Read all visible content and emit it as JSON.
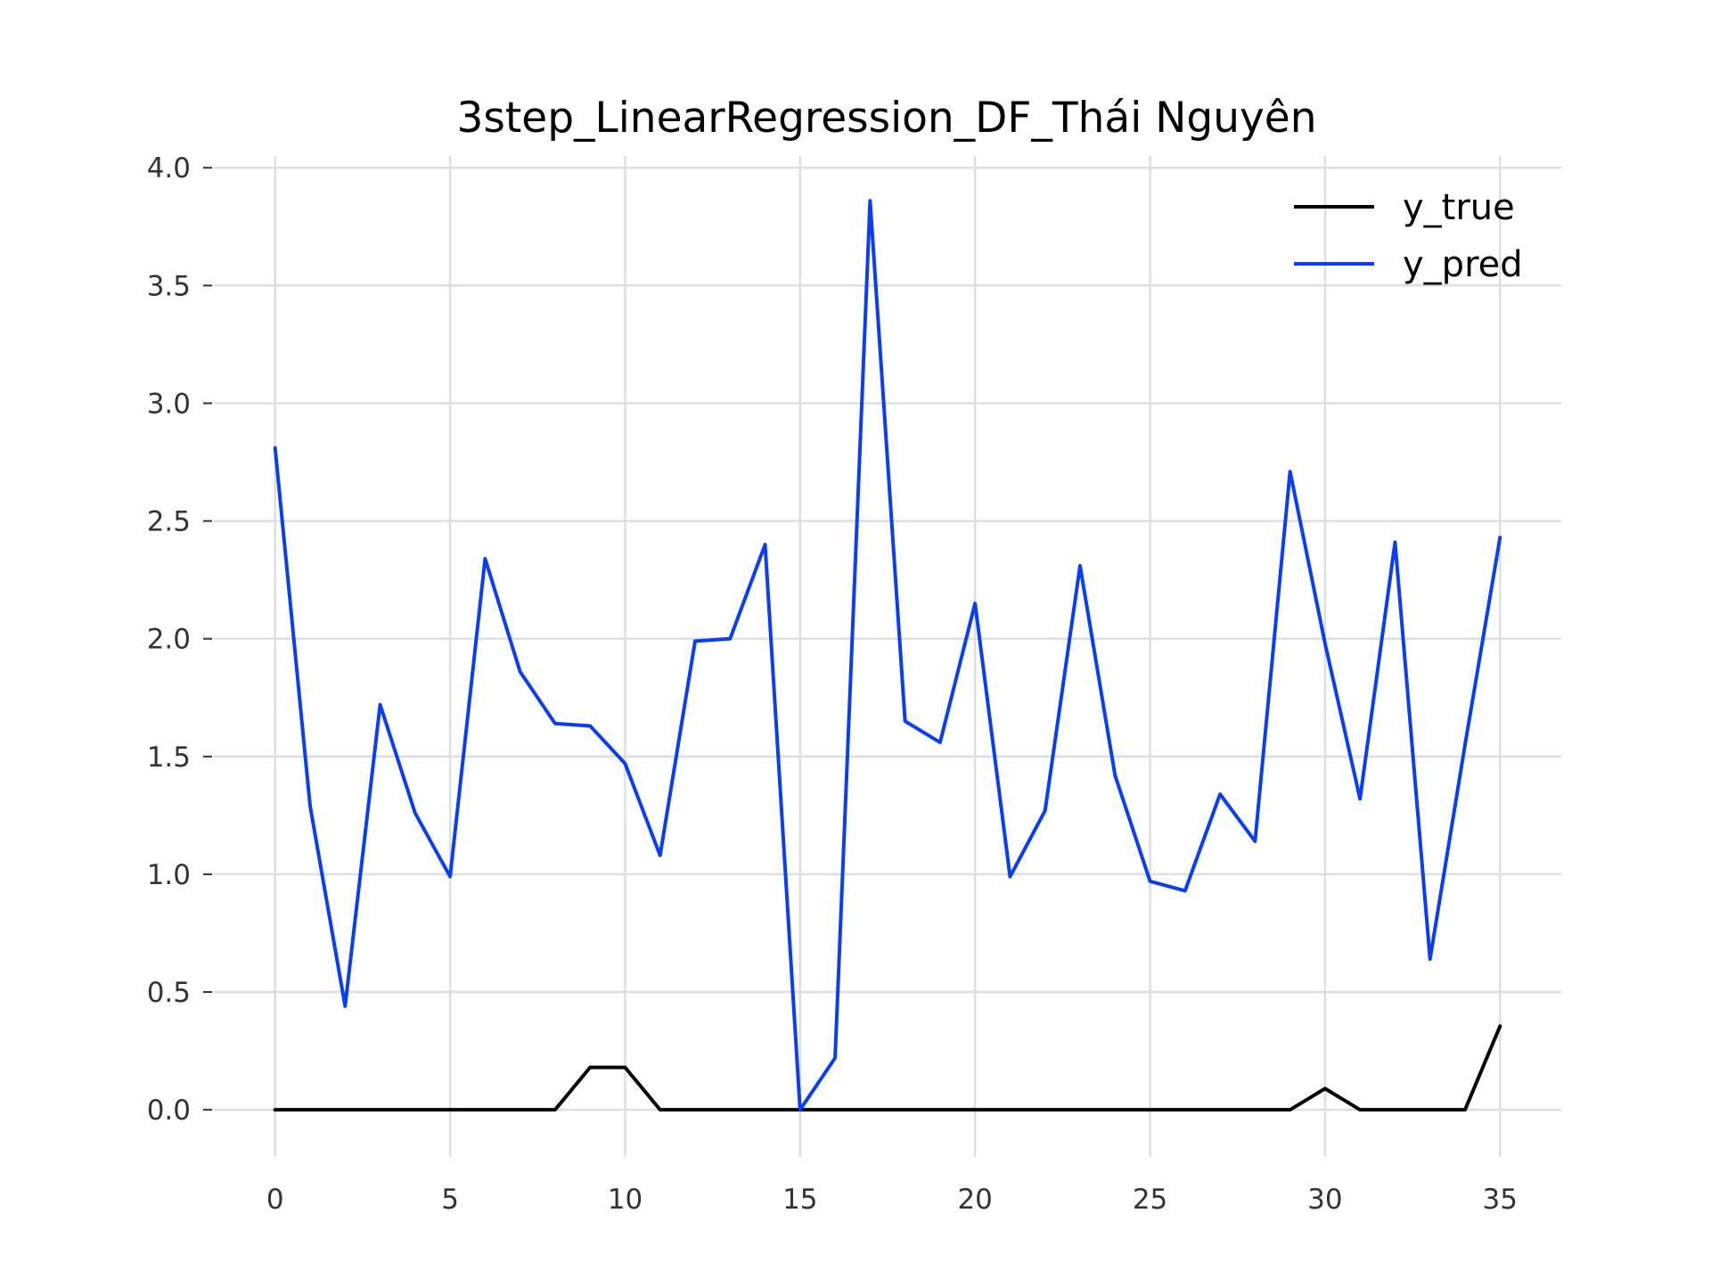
{
  "chart_data": {
    "type": "line",
    "title": "3step_LinearRegression_DF_Thái Nguyên",
    "xlabel": "",
    "ylabel": "",
    "xlim": [
      -1.75,
      36.75
    ],
    "ylim": [
      -0.2,
      4.05
    ],
    "x_ticks": [
      0,
      5,
      10,
      15,
      20,
      25,
      30,
      35
    ],
    "y_ticks": [
      0.0,
      0.5,
      1.0,
      1.5,
      2.0,
      2.5,
      3.0,
      3.5,
      4.0
    ],
    "grid": true,
    "legend_position": "top-right",
    "x": [
      0,
      1,
      2,
      3,
      4,
      5,
      6,
      7,
      8,
      9,
      10,
      11,
      12,
      13,
      14,
      15,
      16,
      17,
      18,
      19,
      20,
      21,
      22,
      23,
      24,
      25,
      26,
      27,
      28,
      29,
      30,
      31,
      32,
      33,
      34,
      35
    ],
    "series": [
      {
        "name": "y_true",
        "color": "#000000",
        "values": [
          0,
          0,
          0,
          0,
          0,
          0,
          0,
          0,
          0,
          0.18,
          0.18,
          0,
          0,
          0,
          0,
          0,
          0,
          0,
          0,
          0,
          0,
          0,
          0,
          0,
          0,
          0,
          0,
          0,
          0,
          0,
          0.09,
          0,
          0,
          0,
          0,
          0.355
        ]
      },
      {
        "name": "y_pred",
        "color": "#0a3ef5",
        "values": [
          2.81,
          1.29,
          0.44,
          1.72,
          1.26,
          0.99,
          2.34,
          1.86,
          1.64,
          1.63,
          1.47,
          1.08,
          1.99,
          2.0,
          2.4,
          0.0,
          0.22,
          3.86,
          1.65,
          1.56,
          2.15,
          0.99,
          1.27,
          2.31,
          1.42,
          0.97,
          0.93,
          1.34,
          1.14,
          2.71,
          1.98,
          1.32,
          2.41,
          0.64,
          1.55,
          2.43
        ]
      }
    ]
  }
}
